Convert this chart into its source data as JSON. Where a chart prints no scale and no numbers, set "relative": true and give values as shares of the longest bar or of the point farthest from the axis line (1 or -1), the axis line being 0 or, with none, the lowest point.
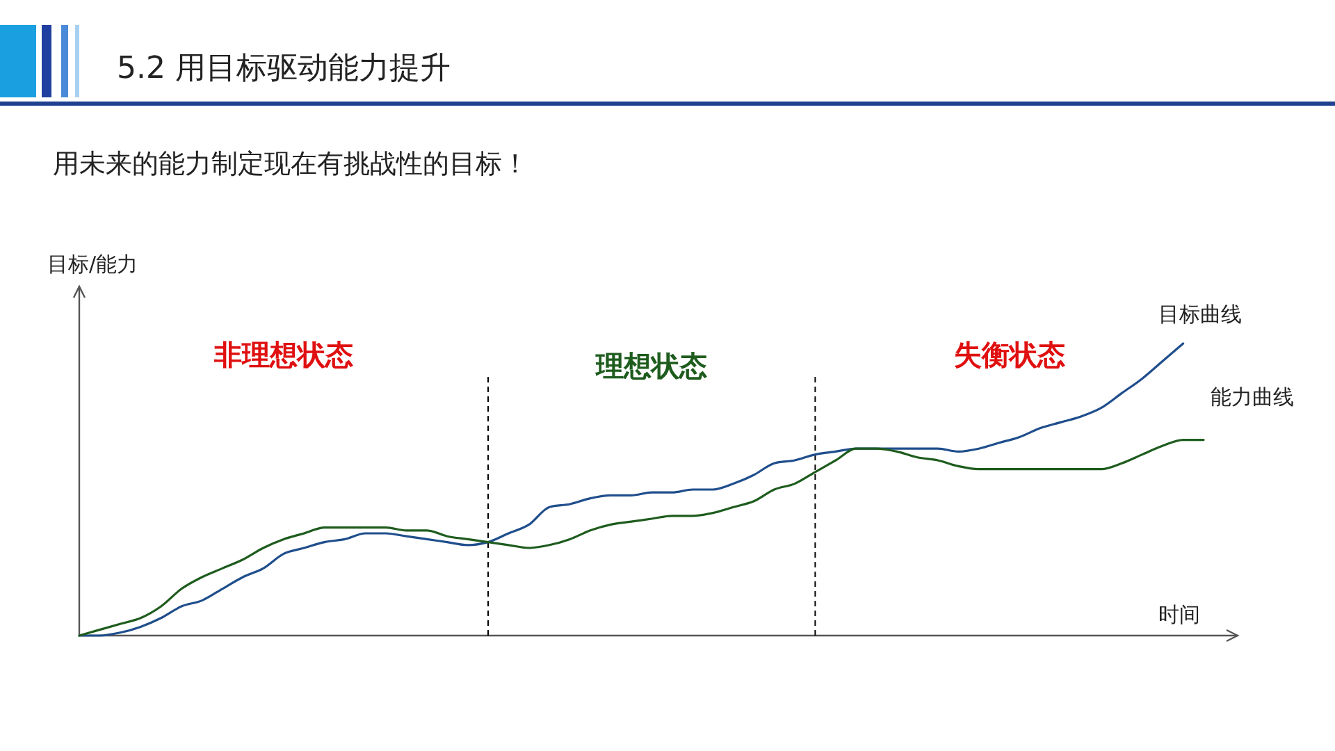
{
  "chart_data": {
    "type": "line",
    "title": "5.2 用目标驱动能力提升",
    "subtitle": "用未来的能力制定现在有挑战性的目标！",
    "xlabel": "时间",
    "ylabel": "目标/能力",
    "relative": true,
    "marker": "none",
    "line_style": "solid",
    "categories": [
      null,
      null,
      null,
      null,
      null,
      null,
      null,
      null,
      null,
      null,
      null,
      null,
      null,
      null,
      null,
      null,
      null,
      null,
      null,
      null,
      null,
      null,
      null,
      null,
      null,
      null,
      null,
      null,
      null,
      null,
      null,
      null,
      null,
      null,
      null,
      null,
      null,
      null,
      null,
      null,
      null,
      null,
      null,
      null,
      null,
      null,
      null,
      null,
      null,
      null,
      null,
      null,
      null,
      null,
      null,
      null
    ],
    "series": [
      {
        "name": "目标曲线",
        "color": "#1f4e8c",
        "values": [
          0,
          0.0,
          0.01,
          0.03,
          0.06,
          0.1,
          0.12,
          0.16,
          0.2,
          0.23,
          0.28,
          0.3,
          0.32,
          0.33,
          0.35,
          0.35,
          0.34,
          0.33,
          0.32,
          0.31,
          0.32,
          0.35,
          0.38,
          0.44,
          0.45,
          0.47,
          0.48,
          0.48,
          0.49,
          0.49,
          0.5,
          0.5,
          0.52,
          0.55,
          0.59,
          0.6,
          0.62,
          0.63,
          0.64,
          0.64,
          0.64,
          0.64,
          0.64,
          0.63,
          0.64,
          0.66,
          0.68,
          0.71,
          0.73,
          0.75,
          0.78,
          0.83,
          0.88,
          0.94,
          1,
          null
        ]
      },
      {
        "name": "能力曲线",
        "color": "#1e5c1e",
        "values": [
          0,
          0.02,
          0.04,
          0.06,
          0.1,
          0.16,
          0.2,
          0.23,
          0.26,
          0.3,
          0.33,
          0.35,
          0.37,
          0.37,
          0.37,
          0.37,
          0.36,
          0.36,
          0.34,
          0.33,
          0.32,
          0.31,
          0.3,
          0.31,
          0.33,
          0.36,
          0.38,
          0.39,
          0.4,
          0.41,
          0.41,
          0.42,
          0.44,
          0.46,
          0.5,
          0.52,
          0.56,
          0.6,
          0.64,
          0.64,
          0.63,
          0.61,
          0.6,
          0.58,
          0.57,
          0.57,
          0.57,
          0.57,
          0.57,
          0.57,
          0.57,
          0.59,
          0.62,
          0.65,
          0.67,
          0.67
        ]
      }
    ],
    "annotations": [
      "非理想状态",
      "理想状态",
      "失衡状态"
    ]
  }
}
